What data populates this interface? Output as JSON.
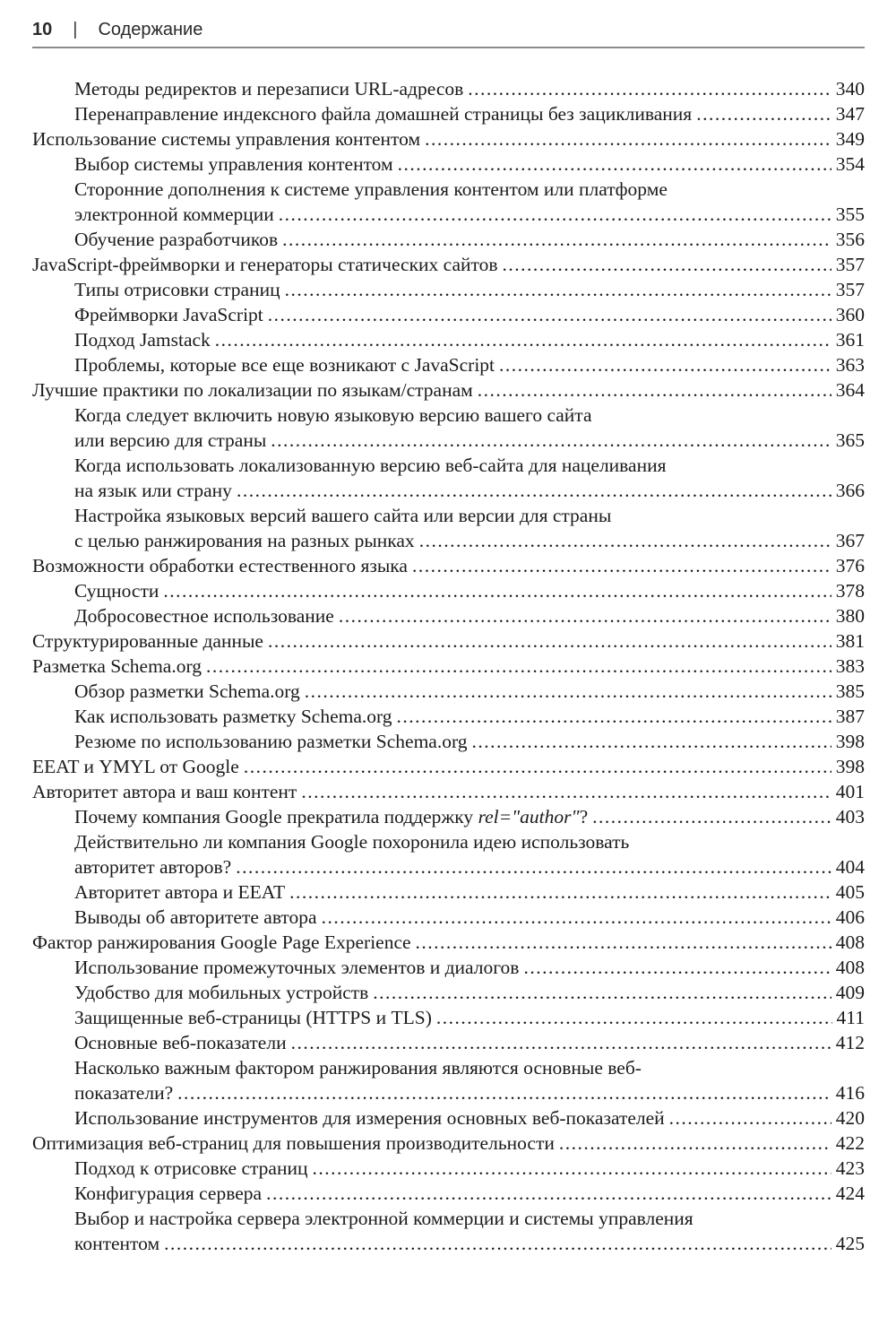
{
  "header": {
    "page_number": "10",
    "separator": "|",
    "title": "Содержание"
  },
  "colors": {
    "text": "#1b1b1b",
    "rule": "#8a8a8a",
    "background": "#ffffff"
  },
  "toc": {
    "rows": [
      {
        "indent": 1,
        "parts": [
          {
            "text": "Методы редиректов и перезаписи URL-адресов"
          }
        ],
        "page": "340"
      },
      {
        "indent": 1,
        "parts": [
          {
            "text": "Перенаправление индексного файла домашней страницы без зацикливания"
          }
        ],
        "page": "347"
      },
      {
        "indent": 0,
        "parts": [
          {
            "text": "Использование системы управления контентом"
          }
        ],
        "page": "349"
      },
      {
        "indent": 1,
        "parts": [
          {
            "text": "Выбор системы управления контентом"
          }
        ],
        "page": "354"
      },
      {
        "indent": 1,
        "parts": [
          {
            "text": "Сторонние дополнения к системе управления контентом или платформе"
          }
        ],
        "page": null
      },
      {
        "indent": 1,
        "parts": [
          {
            "text": "электронной коммерции"
          }
        ],
        "page": "355"
      },
      {
        "indent": 1,
        "parts": [
          {
            "text": "Обучение разработчиков"
          }
        ],
        "page": "356"
      },
      {
        "indent": 0,
        "parts": [
          {
            "text": "JavaScript-фреймворки и генераторы статических сайтов"
          }
        ],
        "page": "357"
      },
      {
        "indent": 1,
        "parts": [
          {
            "text": "Типы отрисовки страниц"
          }
        ],
        "page": "357"
      },
      {
        "indent": 1,
        "parts": [
          {
            "text": "Фреймворки JavaScript"
          }
        ],
        "page": "360"
      },
      {
        "indent": 1,
        "parts": [
          {
            "text": "Подход Jamstack"
          }
        ],
        "page": "361"
      },
      {
        "indent": 1,
        "parts": [
          {
            "text": "Проблемы, которые все еще возникают с JavaScript"
          }
        ],
        "page": "363"
      },
      {
        "indent": 0,
        "parts": [
          {
            "text": "Лучшие практики по локализации по языкам/странам"
          }
        ],
        "page": "364"
      },
      {
        "indent": 1,
        "parts": [
          {
            "text": "Когда следует включить новую языковую версию вашего сайта"
          }
        ],
        "page": null
      },
      {
        "indent": 1,
        "parts": [
          {
            "text": "или версию для страны"
          }
        ],
        "page": "365"
      },
      {
        "indent": 1,
        "parts": [
          {
            "text": "Когда использовать локализованную версию веб-сайта для нацеливания"
          }
        ],
        "page": null
      },
      {
        "indent": 1,
        "parts": [
          {
            "text": "на язык или страну"
          }
        ],
        "page": "366"
      },
      {
        "indent": 1,
        "parts": [
          {
            "text": "Настройка языковых версий вашего сайта или версии для страны"
          }
        ],
        "page": null
      },
      {
        "indent": 1,
        "parts": [
          {
            "text": "с целью ранжирования на разных рынках"
          }
        ],
        "page": "367"
      },
      {
        "indent": 0,
        "parts": [
          {
            "text": "Возможности обработки естественного языка"
          }
        ],
        "page": "376"
      },
      {
        "indent": 1,
        "parts": [
          {
            "text": "Сущности"
          }
        ],
        "page": "378"
      },
      {
        "indent": 1,
        "parts": [
          {
            "text": "Добросовестное использование"
          }
        ],
        "page": "380"
      },
      {
        "indent": 0,
        "parts": [
          {
            "text": "Структурированные данные"
          }
        ],
        "page": "381"
      },
      {
        "indent": 0,
        "parts": [
          {
            "text": "Разметка Schema.org"
          }
        ],
        "page": "383"
      },
      {
        "indent": 1,
        "parts": [
          {
            "text": "Обзор разметки Schema.org"
          }
        ],
        "page": "385"
      },
      {
        "indent": 1,
        "parts": [
          {
            "text": "Как использовать разметку Schema.org"
          }
        ],
        "page": "387"
      },
      {
        "indent": 1,
        "parts": [
          {
            "text": "Резюме по использованию разметки Schema.org"
          }
        ],
        "page": "398"
      },
      {
        "indent": 0,
        "parts": [
          {
            "text": "EEAT и YMYL от Google"
          }
        ],
        "page": "398"
      },
      {
        "indent": 0,
        "parts": [
          {
            "text": "Авторитет автора и ваш контент"
          }
        ],
        "page": "401"
      },
      {
        "indent": 1,
        "parts": [
          {
            "text": "Почему компания Google прекратила поддержку "
          },
          {
            "text": "rel=\"author\"",
            "italic": true
          },
          {
            "text": "?"
          }
        ],
        "page": "403"
      },
      {
        "indent": 1,
        "parts": [
          {
            "text": "Действительно ли компания Google похоронила идею использовать"
          }
        ],
        "page": null
      },
      {
        "indent": 1,
        "parts": [
          {
            "text": "авторитет авторов?"
          }
        ],
        "page": "404"
      },
      {
        "indent": 1,
        "parts": [
          {
            "text": "Авторитет автора и EEAT"
          }
        ],
        "page": "405"
      },
      {
        "indent": 1,
        "parts": [
          {
            "text": "Выводы об авторитете автора"
          }
        ],
        "page": "406"
      },
      {
        "indent": 0,
        "parts": [
          {
            "text": "Фактор ранжирования Google Page Experience"
          }
        ],
        "page": "408"
      },
      {
        "indent": 1,
        "parts": [
          {
            "text": "Использование промежуточных элементов и диалогов"
          }
        ],
        "page": "408"
      },
      {
        "indent": 1,
        "parts": [
          {
            "text": "Удобство для мобильных устройств"
          }
        ],
        "page": "409"
      },
      {
        "indent": 1,
        "parts": [
          {
            "text": "Защищенные веб-страницы (HTTPS и TLS)"
          }
        ],
        "page": "411"
      },
      {
        "indent": 1,
        "parts": [
          {
            "text": "Основные веб-показатели"
          }
        ],
        "page": "412"
      },
      {
        "indent": 1,
        "parts": [
          {
            "text": "Насколько важным фактором ранжирования являются основные веб-"
          }
        ],
        "page": null
      },
      {
        "indent": 1,
        "parts": [
          {
            "text": "показатели?"
          }
        ],
        "page": "416"
      },
      {
        "indent": 1,
        "parts": [
          {
            "text": "Использование инструментов для измерения основных веб-показателей"
          }
        ],
        "page": "420"
      },
      {
        "indent": 0,
        "parts": [
          {
            "text": "Оптимизация веб-страниц для повышения производительности"
          }
        ],
        "page": "422"
      },
      {
        "indent": 1,
        "parts": [
          {
            "text": "Подход к отрисовке страниц"
          }
        ],
        "page": "423"
      },
      {
        "indent": 1,
        "parts": [
          {
            "text": "Конфигурация сервера"
          }
        ],
        "page": "424"
      },
      {
        "indent": 1,
        "parts": [
          {
            "text": "Выбор и настройка сервера электронной коммерции и системы управления"
          }
        ],
        "page": null
      },
      {
        "indent": 1,
        "parts": [
          {
            "text": "контентом"
          }
        ],
        "page": "425"
      }
    ]
  }
}
